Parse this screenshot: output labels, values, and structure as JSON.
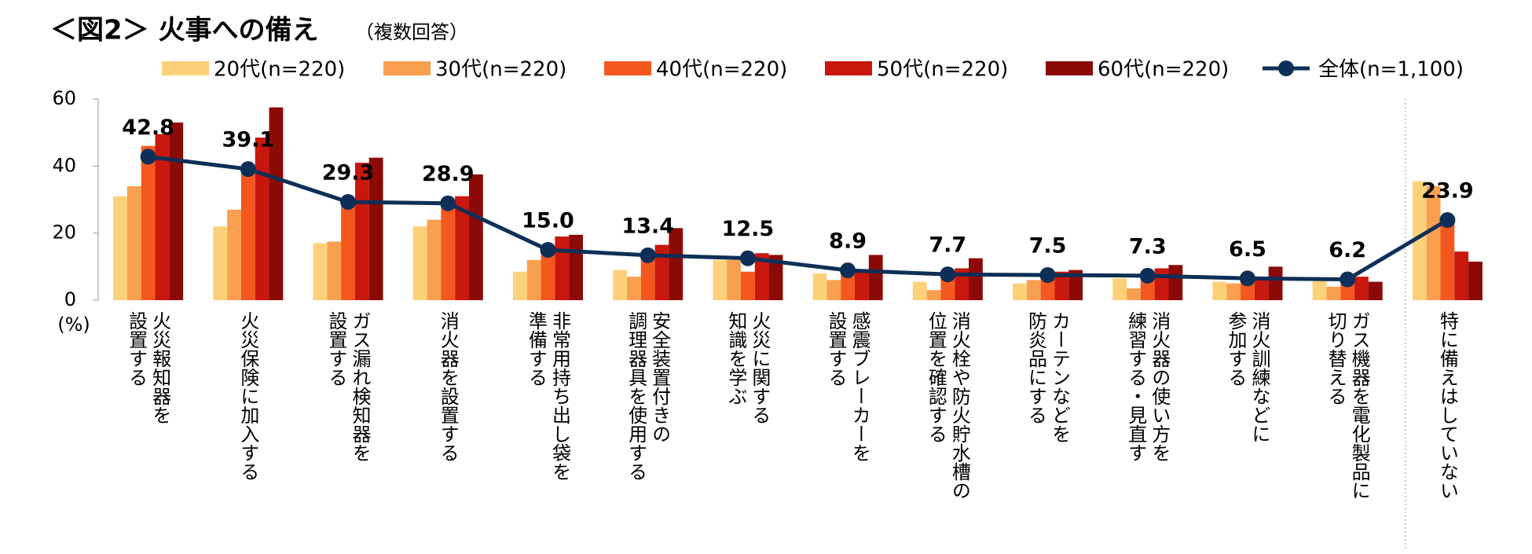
{
  "chart_data": {
    "type": "bar",
    "title": "＜図2＞ 火事への備え",
    "subtitle": "（複数回答）",
    "y_label": "(%)",
    "categories": [
      [
        "火災報知器を",
        "設置する"
      ],
      [
        "火災保険に加入する"
      ],
      [
        "ガス漏れ検知器を",
        "設置する"
      ],
      [
        "消火器を設置する"
      ],
      [
        "非常用持ち出し袋を",
        "準備する"
      ],
      [
        "安全装置付きの",
        "調理器具を使用する"
      ],
      [
        "火災に関する",
        "知識を学ぶ"
      ],
      [
        "感震ブレーカーを",
        "設置する"
      ],
      [
        "消火栓や防火貯水槽の",
        "位置を確認する"
      ],
      [
        "カーテンなどを",
        "防炎品にする"
      ],
      [
        "消火器の使い方を",
        "練習する・見直す"
      ],
      [
        "消火訓練などに",
        "参加する"
      ],
      [
        "ガス機器を電化製品に",
        "切り替える"
      ],
      [
        "特に備えはしていない"
      ]
    ],
    "ylim": [
      0,
      60
    ],
    "yticks": [
      0,
      20,
      40,
      60
    ],
    "series": [
      {
        "name": "20代(n=220)",
        "color": "#fdd17a",
        "values": [
          31,
          22,
          17,
          22,
          8.5,
          9,
          12,
          8,
          5.5,
          5,
          6.5,
          5.5,
          6,
          35.5
        ]
      },
      {
        "name": "30代(n=220)",
        "color": "#f9a050",
        "values": [
          34,
          27,
          17.5,
          24,
          12,
          7,
          12,
          6,
          3,
          6,
          3.5,
          5,
          4,
          34
        ]
      },
      {
        "name": "40代(n=220)",
        "color": "#f5581e",
        "values": [
          46,
          39,
          29.5,
          28,
          15,
          13,
          8.5,
          8,
          8,
          8,
          8,
          6,
          5,
          24
        ]
      },
      {
        "name": "50代(n=220)",
        "color": "#c8170c",
        "values": [
          49.5,
          48.5,
          41,
          31,
          19,
          16.5,
          14,
          9,
          9.5,
          8.5,
          9.5,
          7,
          7,
          14.5
        ]
      },
      {
        "name": "60代(n=220)",
        "color": "#8b0a05",
        "values": [
          53,
          57.5,
          42.5,
          37.5,
          19.5,
          21.5,
          13.5,
          13.5,
          12.5,
          9,
          10.5,
          10,
          5.5,
          11.5
        ]
      },
      {
        "name": "全体(n=1,100)",
        "color": "#0d2f57",
        "type": "line",
        "values": [
          42.8,
          39.1,
          29.3,
          28.9,
          15.0,
          13.4,
          12.5,
          8.9,
          7.7,
          7.5,
          7.3,
          6.5,
          6.2,
          23.9
        ],
        "value_labels": [
          "42.8",
          "39.1",
          "29.3",
          "28.9",
          "15.0",
          "13.4",
          "12.5",
          "8.9",
          "7.7",
          "7.5",
          "7.3",
          "6.5",
          "6.2",
          "23.9"
        ]
      }
    ]
  }
}
